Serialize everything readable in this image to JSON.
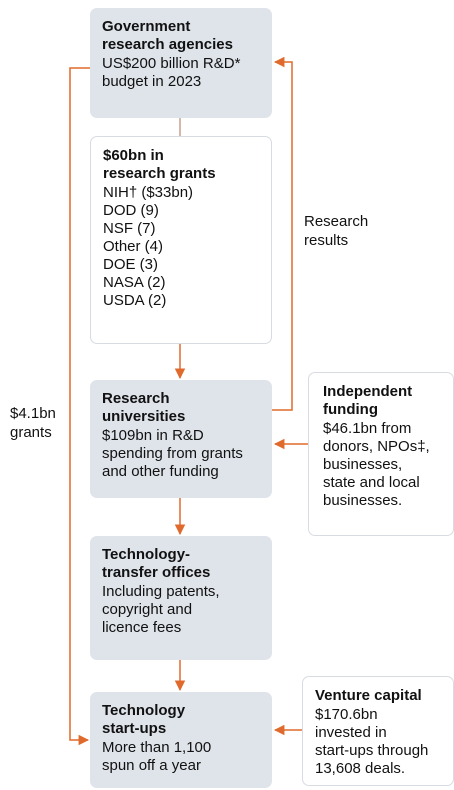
{
  "nodes": [
    {
      "title": [
        "Government",
        "research agencies"
      ],
      "body": [
        "US$200 billion R&D*",
        "budget in 2023"
      ]
    },
    {
      "title": [
        "$60bn in",
        "research grants"
      ],
      "body": [
        "NIH† ($33bn)",
        "DOD (9)",
        "NSF (7)",
        "Other (4)",
        "DOE (3)",
        "NASA (2)",
        "USDA (2)"
      ]
    },
    {
      "title": [
        "Research",
        "universities"
      ],
      "body": [
        "$109bn in R&D",
        "spending from grants",
        "and other funding"
      ]
    },
    {
      "title": [
        "Technology-",
        "transfer offices"
      ],
      "body": [
        "Including patents,",
        "copyright and",
        "licence fees"
      ]
    },
    {
      "title": [
        "Technology",
        "start-ups"
      ],
      "body": [
        "More than 1,100",
        "spun off a year"
      ]
    },
    {
      "title": [
        "Independent",
        "funding"
      ],
      "body": [
        "$46.1bn from",
        "donors, NPOs‡,",
        "businesses,",
        "state and local",
        "businesses."
      ]
    },
    {
      "title": [
        "Venture capital"
      ],
      "body": [
        "$170.6bn",
        "invested in",
        "start-ups through",
        "13,608 deals."
      ]
    }
  ],
  "labels": [
    [
      "Research",
      "results"
    ],
    [
      "$4.1bn",
      "grants"
    ]
  ]
}
